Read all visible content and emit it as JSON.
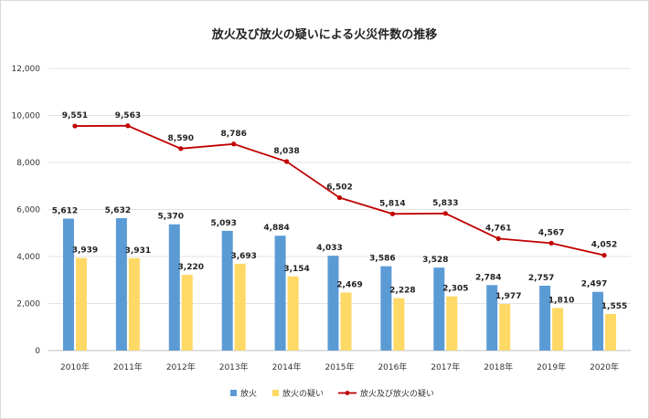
{
  "chart_data": {
    "type": "bar+line",
    "title": "放火及び放火の疑いによる火災件数の推移",
    "categories": [
      "2010年",
      "2011年",
      "2012年",
      "2013年",
      "2014年",
      "2015年",
      "2016年",
      "2017年",
      "2018年",
      "2019年",
      "2020年"
    ],
    "series": [
      {
        "name": "放火",
        "type": "bar",
        "color": "#5b9bd5",
        "values": [
          5612,
          5632,
          5370,
          5093,
          4884,
          4033,
          3586,
          3528,
          2784,
          2757,
          2497
        ],
        "labels": [
          "5,612",
          "5,632",
          "5,370",
          "5,093",
          "4,884",
          "4,033",
          "3,586",
          "3,528",
          "2,784",
          "2,757",
          "2,497"
        ]
      },
      {
        "name": "放火の疑い",
        "type": "bar",
        "color": "#ffd966",
        "values": [
          3939,
          3931,
          3220,
          3693,
          3154,
          2469,
          2228,
          2305,
          1977,
          1810,
          1555
        ],
        "labels": [
          "3,939",
          "3,931",
          "3,220",
          "3,693",
          "3,154",
          "2,469",
          "2,228",
          "2,305",
          "1,977",
          "1,810",
          "1,555"
        ]
      },
      {
        "name": "放火及び放火の疑い",
        "type": "line",
        "color": "#c00000",
        "values": [
          9551,
          9563,
          8590,
          8786,
          8038,
          6502,
          5814,
          5833,
          4761,
          4567,
          4052
        ],
        "labels": [
          "9,551",
          "9,563",
          "8,590",
          "8,786",
          "8,038",
          "6,502",
          "5,814",
          "5,833",
          "4,761",
          "4,567",
          "4,052"
        ]
      }
    ],
    "yticks": [
      0,
      2000,
      4000,
      6000,
      8000,
      10000,
      12000
    ],
    "ytick_labels": [
      "0",
      "2,000",
      "4,000",
      "6,000",
      "8,000",
      "10,000",
      "12,000"
    ],
    "ylim": [
      0,
      12000
    ],
    "grid": true,
    "legend_position": "bottom-center"
  }
}
